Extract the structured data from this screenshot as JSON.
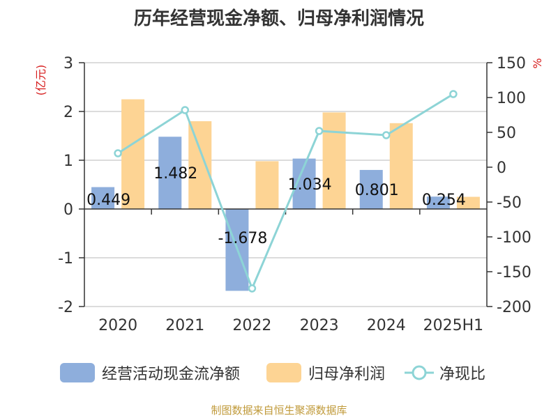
{
  "title": "历年经营现金净额、归母净利润情况",
  "source": "制图数据来自恒生聚源数据库",
  "colors": {
    "cash": "#8eaedc",
    "profit": "#fdd494",
    "ratio": "#8dd4d6",
    "ylabel_left": "#d61a1a",
    "ylabel_right": "#d61a1a"
  },
  "legend": {
    "cash": "经营活动现金流净额",
    "profit": "归母净利润",
    "ratio": "净现比"
  },
  "chart_data": {
    "type": "bar",
    "categories": [
      "2020",
      "2021",
      "2022",
      "2023",
      "2024",
      "2025H1"
    ],
    "ylabel_left": "(亿元)",
    "ylabel_right": "%",
    "ylim_left": [
      -2,
      3
    ],
    "ylim_right": [
      -200,
      150
    ],
    "yticks_left": [
      "3",
      "2",
      "1",
      "0",
      "-1",
      "-2"
    ],
    "yticks_right": [
      "150",
      "100",
      "50",
      "0",
      "-50",
      "-100",
      "-150",
      "-200"
    ],
    "series": [
      {
        "name": "经营活动现金流净额",
        "type": "bar",
        "axis": "left",
        "values": [
          0.449,
          1.482,
          -1.678,
          1.034,
          0.801,
          0.254
        ],
        "labels": [
          "0.449",
          "1.482",
          "-1.678",
          "1.034",
          "0.801",
          "0.254"
        ]
      },
      {
        "name": "归母净利润",
        "type": "bar",
        "axis": "left",
        "values": [
          2.25,
          1.8,
          0.98,
          1.98,
          1.76,
          0.25
        ]
      },
      {
        "name": "净现比",
        "type": "line",
        "axis": "right",
        "values": [
          20,
          82,
          -174,
          52,
          46,
          105
        ]
      }
    ]
  }
}
